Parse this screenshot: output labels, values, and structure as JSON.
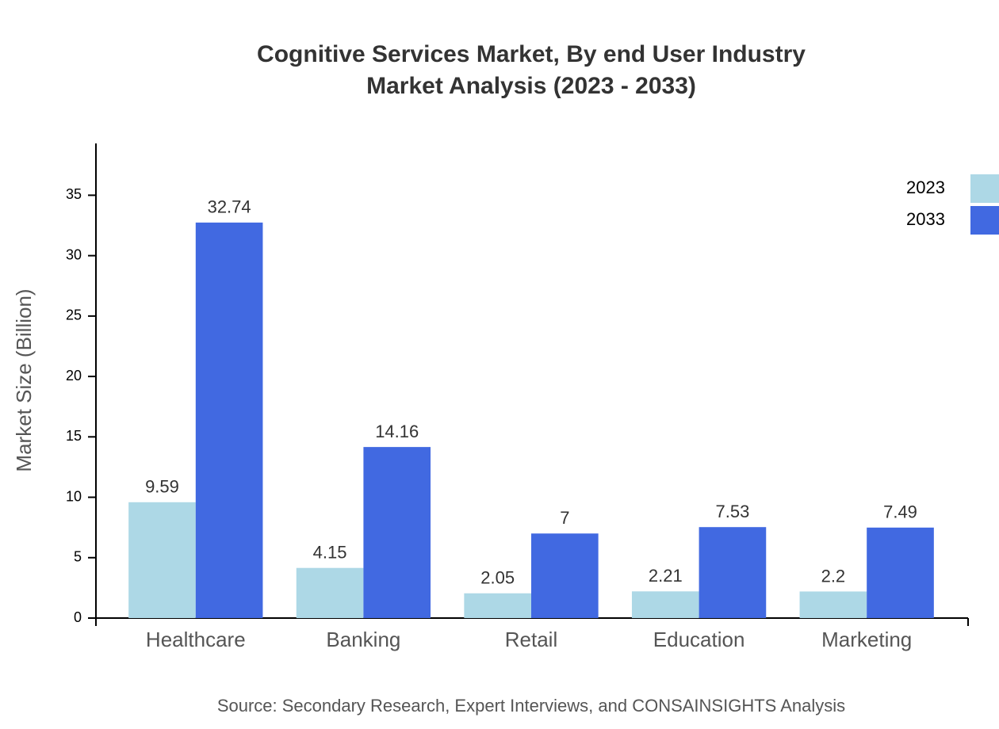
{
  "chart_data": {
    "type": "bar",
    "title": "Cognitive Services Market, By end User Industry",
    "subtitle": "Market Analysis (2023 - 2033)",
    "y_label": "Market Size (Billion)",
    "source": "Source: Secondary Research, Expert Interviews, and CONSAINSIGHTS Analysis",
    "categories": [
      "Healthcare",
      "Banking",
      "Retail",
      "Education",
      "Marketing"
    ],
    "series": [
      {
        "name": "2023",
        "color": "#add8e6",
        "values": [
          9.59,
          4.15,
          2.05,
          2.21,
          2.2
        ]
      },
      {
        "name": "2033",
        "color": "#4169e1",
        "values": [
          32.74,
          14.16,
          7,
          7.53,
          7.49
        ]
      }
    ],
    "ylim": [
      0,
      39.29
    ],
    "yticks": [
      0,
      5,
      10,
      15,
      20,
      25,
      30,
      35
    ],
    "legend": "top-right"
  }
}
